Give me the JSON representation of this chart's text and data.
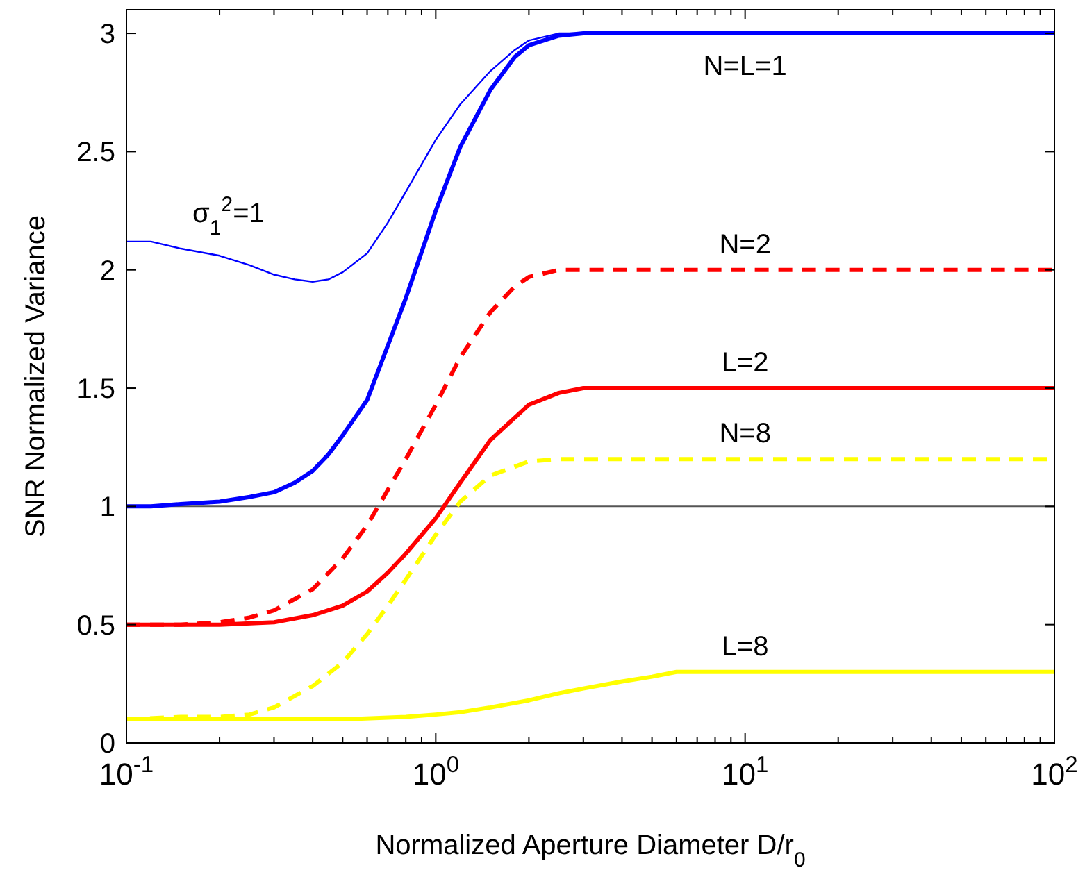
{
  "chart_data": {
    "type": "line",
    "xlabel": "Normalized Aperture Diameter D/r$_{0}$",
    "ylabel": "SNR Normalized Variance",
    "log": "x",
    "grid": false,
    "xlim": [
      0.1,
      100
    ],
    "ylim": [
      0,
      3.1
    ],
    "xticks": [
      {
        "value": 0.1,
        "label": "10$^{-1}$"
      },
      {
        "value": 1,
        "label": "10$^{0}$"
      },
      {
        "value": 10,
        "label": "10$^{1}$"
      },
      {
        "value": 100,
        "label": "10$^{2}$"
      }
    ],
    "yticks": [
      0,
      0.5,
      1,
      1.5,
      2,
      2.5,
      3
    ],
    "ref_lines": [
      {
        "axis": "y",
        "value": 1,
        "color": "#555555"
      }
    ],
    "series": [
      {
        "name": "σ$_{1}$$^{2}$=1",
        "color": "#0000ff",
        "line_style": "solid",
        "x": [
          0.1,
          0.12,
          0.15,
          0.2,
          0.25,
          0.3,
          0.35,
          0.4,
          0.45,
          0.5,
          0.6,
          0.7,
          0.8,
          1,
          1.2,
          1.5,
          1.8,
          2,
          2.5,
          3,
          100
        ],
        "values": [
          2.12,
          2.12,
          2.09,
          2.06,
          2.02,
          1.98,
          1.96,
          1.95,
          1.96,
          1.99,
          2.07,
          2.2,
          2.33,
          2.55,
          2.7,
          2.84,
          2.93,
          2.97,
          3,
          3,
          3
        ]
      },
      {
        "name": "N=L=1",
        "color": "#0000ff",
        "line_style": "solid",
        "x": [
          0.1,
          0.12,
          0.15,
          0.2,
          0.25,
          0.3,
          0.35,
          0.4,
          0.45,
          0.5,
          0.6,
          0.7,
          0.8,
          1,
          1.2,
          1.5,
          1.8,
          2,
          2.5,
          3,
          100
        ],
        "values": [
          1,
          1,
          1.01,
          1.02,
          1.04,
          1.06,
          1.1,
          1.15,
          1.22,
          1.3,
          1.45,
          1.68,
          1.88,
          2.25,
          2.52,
          2.76,
          2.9,
          2.95,
          2.99,
          3,
          3
        ]
      },
      {
        "name": "N=2",
        "color": "#ff0000",
        "line_style": "dashed",
        "x": [
          0.1,
          0.15,
          0.2,
          0.25,
          0.3,
          0.4,
          0.5,
          0.6,
          0.7,
          0.8,
          1,
          1.2,
          1.5,
          1.8,
          2,
          2.5,
          100
        ],
        "values": [
          0.5,
          0.5,
          0.51,
          0.53,
          0.56,
          0.65,
          0.78,
          0.92,
          1.07,
          1.2,
          1.43,
          1.63,
          1.82,
          1.93,
          1.97,
          2,
          2
        ]
      },
      {
        "name": "L=2",
        "color": "#ff0000",
        "line_style": "solid",
        "x": [
          0.1,
          0.2,
          0.3,
          0.4,
          0.5,
          0.6,
          0.7,
          0.8,
          1,
          1.2,
          1.5,
          2,
          2.5,
          3,
          4,
          100
        ],
        "values": [
          0.5,
          0.5,
          0.51,
          0.54,
          0.58,
          0.64,
          0.72,
          0.8,
          0.95,
          1.1,
          1.28,
          1.43,
          1.48,
          1.5,
          1.5,
          1.5
        ]
      },
      {
        "name": "N=8",
        "color": "#ffff00",
        "line_style": "dashed",
        "x": [
          0.1,
          0.15,
          0.2,
          0.25,
          0.3,
          0.4,
          0.5,
          0.6,
          0.7,
          0.8,
          1,
          1.2,
          1.5,
          2,
          2.5,
          100
        ],
        "values": [
          0.1,
          0.11,
          0.11,
          0.12,
          0.15,
          0.24,
          0.34,
          0.46,
          0.58,
          0.69,
          0.88,
          1.02,
          1.13,
          1.19,
          1.2,
          1.2
        ]
      },
      {
        "name": "L=8",
        "color": "#ffff00",
        "line_style": "solid",
        "x": [
          0.1,
          0.3,
          0.5,
          0.8,
          1,
          1.2,
          1.5,
          2,
          2.5,
          3,
          4,
          5,
          6,
          7,
          100
        ],
        "values": [
          0.1,
          0.1,
          0.1,
          0.11,
          0.12,
          0.13,
          0.15,
          0.18,
          0.21,
          0.23,
          0.26,
          0.28,
          0.3,
          0.3,
          0.3
        ]
      }
    ]
  }
}
